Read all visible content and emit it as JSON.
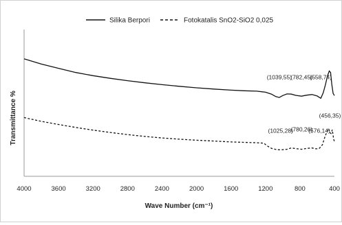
{
  "chart_data": {
    "type": "line",
    "title": "",
    "xlabel": "Wave Number (cm⁻¹)",
    "ylabel": "Transmittance %",
    "x_reversed": true,
    "xlim": [
      4000,
      400
    ],
    "y_ticks_shown": false,
    "grid": false,
    "legend_position": "top",
    "x_ticks": [
      4000,
      3600,
      3200,
      2800,
      2400,
      2000,
      1600,
      1200,
      800,
      400
    ],
    "series": [
      {
        "name": "Silika Berpori",
        "style": "solid",
        "color": "#111111",
        "points": [
          [
            4000,
            86
          ],
          [
            3800,
            83.5
          ],
          [
            3600,
            81.5
          ],
          [
            3400,
            79.5
          ],
          [
            3200,
            78
          ],
          [
            3000,
            76.7
          ],
          [
            2800,
            75.6
          ],
          [
            2600,
            74.6
          ],
          [
            2400,
            73.7
          ],
          [
            2200,
            72.9
          ],
          [
            2000,
            72.2
          ],
          [
            1800,
            71.6
          ],
          [
            1600,
            71.1
          ],
          [
            1450,
            70.8
          ],
          [
            1300,
            70.6
          ],
          [
            1200,
            70.1
          ],
          [
            1130,
            69.2
          ],
          [
            1080,
            68
          ],
          [
            1039,
            67.6
          ],
          [
            1000,
            68.5
          ],
          [
            950,
            69.3
          ],
          [
            900,
            69.2
          ],
          [
            850,
            68.6
          ],
          [
            782,
            68.2
          ],
          [
            720,
            68.7
          ],
          [
            660,
            69
          ],
          [
            600,
            68.3
          ],
          [
            558,
            67.2
          ],
          [
            530,
            69.8
          ],
          [
            505,
            73.5
          ],
          [
            480,
            78
          ],
          [
            460,
            80.2
          ],
          [
            445,
            79.5
          ],
          [
            430,
            73.8
          ],
          [
            415,
            69.5
          ],
          [
            400,
            68.5
          ]
        ]
      },
      {
        "name": "Fotokatalis SnO2-SiO2 0,025",
        "style": "dashed",
        "color": "#111111",
        "points": [
          [
            4000,
            58
          ],
          [
            3800,
            56.2
          ],
          [
            3600,
            54.7
          ],
          [
            3400,
            53.3
          ],
          [
            3200,
            52
          ],
          [
            3000,
            50.9
          ],
          [
            2800,
            49.9
          ],
          [
            2600,
            49
          ],
          [
            2400,
            48.3
          ],
          [
            2200,
            47.7
          ],
          [
            2000,
            47.2
          ],
          [
            1800,
            46.8
          ],
          [
            1600,
            46.4
          ],
          [
            1450,
            46.2
          ],
          [
            1300,
            46
          ],
          [
            1220,
            45.8
          ],
          [
            1180,
            44.5
          ],
          [
            1130,
            43.3
          ],
          [
            1080,
            42.8
          ],
          [
            1025,
            42.6
          ],
          [
            950,
            42.9
          ],
          [
            900,
            43.5
          ],
          [
            850,
            43.2
          ],
          [
            780,
            42.9
          ],
          [
            720,
            43.3
          ],
          [
            660,
            43.5
          ],
          [
            610,
            43.1
          ],
          [
            576,
            43.3
          ],
          [
            540,
            45
          ],
          [
            510,
            48.8
          ],
          [
            485,
            51.5
          ],
          [
            466,
            52.7
          ],
          [
            456,
            51
          ],
          [
            440,
            50.4
          ],
          [
            425,
            52.2
          ],
          [
            410,
            48
          ],
          [
            400,
            46.5
          ]
        ]
      }
    ],
    "annotations": [
      {
        "text": "(1039,55)",
        "x": 1039,
        "y": 76.3
      },
      {
        "text": "(782,45)",
        "x": 782,
        "y": 76.3
      },
      {
        "text": "(558,74)",
        "x": 558,
        "y": 76.3
      },
      {
        "text": "(1025,28)",
        "x": 1025,
        "y": 50.7
      },
      {
        "text": "(780,26)",
        "x": 780,
        "y": 51.5
      },
      {
        "text": "(576,14)",
        "x": 576,
        "y": 50.7
      },
      {
        "text": "(456,35)",
        "x": 452,
        "y": 58
      }
    ]
  }
}
